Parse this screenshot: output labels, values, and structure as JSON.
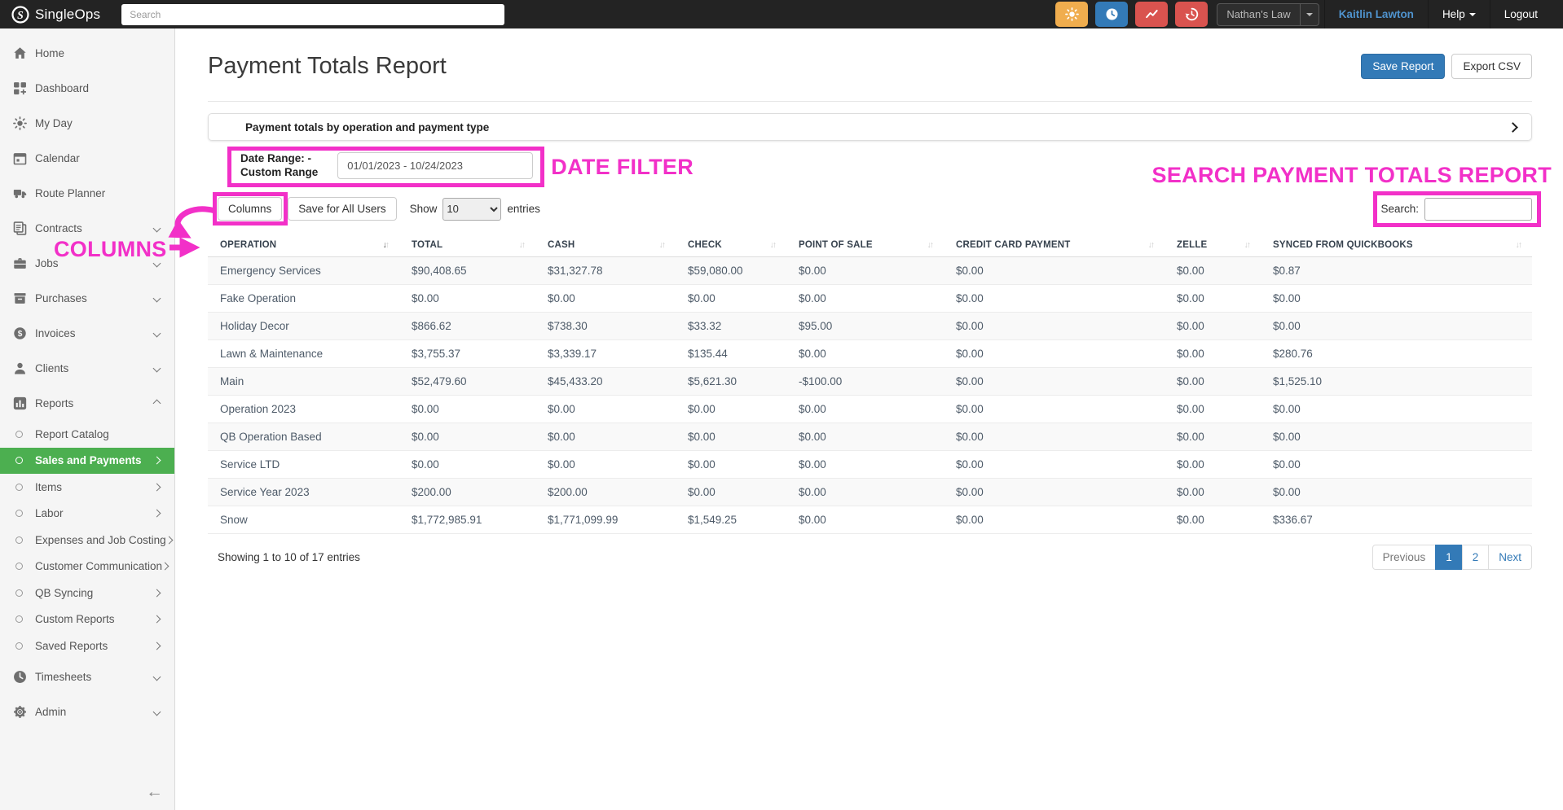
{
  "navbar": {
    "brand": "SingleOps",
    "search_placeholder": "Search",
    "icon_buttons": [
      {
        "icon": "sun",
        "color": "#f0ad4e"
      },
      {
        "icon": "clock",
        "color": "#337ab7"
      },
      {
        "icon": "trend-line",
        "color": "#d9534f"
      },
      {
        "icon": "history",
        "color": "#d9534f"
      }
    ],
    "account_selector": "Nathan's Law",
    "user_name": "Kaitlin Lawton",
    "help_label": "Help",
    "logout_label": "Logout"
  },
  "sidebar": {
    "items": [
      {
        "label": "Home",
        "icon": "home"
      },
      {
        "label": "Dashboard",
        "icon": "dashboard"
      },
      {
        "label": "My Day",
        "icon": "sun"
      },
      {
        "label": "Calendar",
        "icon": "calendar"
      },
      {
        "label": "Route Planner",
        "icon": "truck"
      },
      {
        "label": "Contracts",
        "icon": "contracts",
        "chevron": "down"
      },
      {
        "label": "Jobs",
        "icon": "briefcase",
        "chevron": "down"
      },
      {
        "label": "Purchases",
        "icon": "box",
        "chevron": "down"
      },
      {
        "label": "Invoices",
        "icon": "dollar",
        "chevron": "down"
      },
      {
        "label": "Clients",
        "icon": "person",
        "chevron": "down"
      },
      {
        "label": "Reports",
        "icon": "chart",
        "chevron": "up"
      }
    ],
    "report_subitems": [
      {
        "label": "Report Catalog"
      },
      {
        "label": "Sales and Payments",
        "active": true,
        "chevron": "right"
      },
      {
        "label": "Items",
        "chevron": "right"
      },
      {
        "label": "Labor",
        "chevron": "right"
      },
      {
        "label": "Expenses and Job Costing",
        "chevron": "right"
      },
      {
        "label": "Customer Communication",
        "chevron": "right"
      },
      {
        "label": "QB Syncing",
        "chevron": "right"
      },
      {
        "label": "Custom Reports",
        "chevron": "right"
      },
      {
        "label": "Saved Reports",
        "chevron": "right"
      }
    ],
    "bottom_items": [
      {
        "label": "Timesheets",
        "icon": "clock",
        "chevron": "down"
      },
      {
        "label": "Admin",
        "icon": "gear",
        "chevron": "down"
      }
    ]
  },
  "page": {
    "title": "Payment Totals Report",
    "save_report_label": "Save Report",
    "export_csv_label": "Export CSV",
    "panel_title": "Payment totals by operation and payment type",
    "date_range_label_line1": "Date Range: -",
    "date_range_label_line2": "Custom Range",
    "date_range_value": "01/01/2023 - 10/24/2023",
    "columns_label": "Columns",
    "save_for_all_users_label": "Save for All Users",
    "show_label": "Show",
    "page_size": "10",
    "entries_label": "entries",
    "search_label": "Search:",
    "summary": "Showing 1 to 10 of 17 entries",
    "pagination": {
      "previous": "Previous",
      "pages": [
        "1",
        "2"
      ],
      "active_page": "1",
      "next": "Next"
    }
  },
  "table": {
    "columns": [
      "Operation",
      "Total",
      "Cash",
      "Check",
      "Point of Sale",
      "Credit Card Payment",
      "Zelle",
      "Synced from QuickBooks"
    ],
    "rows": [
      [
        "Emergency Services",
        "$90,408.65",
        "$31,327.78",
        "$59,080.00",
        "$0.00",
        "$0.00",
        "$0.00",
        "$0.87"
      ],
      [
        "Fake Operation",
        "$0.00",
        "$0.00",
        "$0.00",
        "$0.00",
        "$0.00",
        "$0.00",
        "$0.00"
      ],
      [
        "Holiday Decor",
        "$866.62",
        "$738.30",
        "$33.32",
        "$95.00",
        "$0.00",
        "$0.00",
        "$0.00"
      ],
      [
        "Lawn & Maintenance",
        "$3,755.37",
        "$3,339.17",
        "$135.44",
        "$0.00",
        "$0.00",
        "$0.00",
        "$280.76"
      ],
      [
        "Main",
        "$52,479.60",
        "$45,433.20",
        "$5,621.30",
        "-$100.00",
        "$0.00",
        "$0.00",
        "$1,525.10"
      ],
      [
        "Operation 2023",
        "$0.00",
        "$0.00",
        "$0.00",
        "$0.00",
        "$0.00",
        "$0.00",
        "$0.00"
      ],
      [
        "QB Operation Based",
        "$0.00",
        "$0.00",
        "$0.00",
        "$0.00",
        "$0.00",
        "$0.00",
        "$0.00"
      ],
      [
        "Service LTD",
        "$0.00",
        "$0.00",
        "$0.00",
        "$0.00",
        "$0.00",
        "$0.00",
        "$0.00"
      ],
      [
        "Service Year 2023",
        "$200.00",
        "$200.00",
        "$0.00",
        "$0.00",
        "$0.00",
        "$0.00",
        "$0.00"
      ],
      [
        "Snow",
        "$1,772,985.91",
        "$1,771,099.99",
        "$1,549.25",
        "$0.00",
        "$0.00",
        "$0.00",
        "$336.67"
      ]
    ]
  },
  "annotations": {
    "color": "#f230c8",
    "date_filter_label": "DATE FILTER",
    "search_label": "SEARCH PAYMENT TOTALS REPORT",
    "columns_label": "COLUMNS"
  }
}
